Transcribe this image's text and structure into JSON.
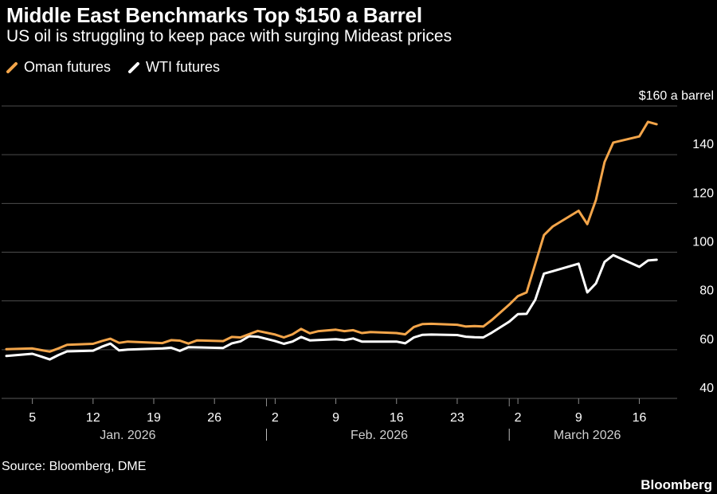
{
  "header": {
    "title": "Middle East Benchmarks Top $150 a Barrel",
    "subtitle": "US oil is struggling to keep pace with surging Mideast prices"
  },
  "footer": {
    "source": "Source: Bloomberg, DME",
    "brand": "Bloomberg"
  },
  "colors": {
    "background": "#000000",
    "oman": "#f3a54a",
    "wti": "#ffffff",
    "grid": "#4d4d4d",
    "text": "#ffffff"
  },
  "chart_data": {
    "type": "line",
    "title": "Middle East Benchmarks Top $150 a Barrel",
    "subtitle": "US oil is struggling to keep pace with surging Mideast prices",
    "xlabel": "",
    "ylabel": "",
    "unit_label": "$160 a barrel",
    "ylim": [
      40,
      160
    ],
    "yticks": [
      40,
      60,
      80,
      100,
      120,
      140,
      160
    ],
    "ytick_labels": [
      "40",
      "60",
      "80",
      "100",
      "120",
      "140",
      "$160 a barrel"
    ],
    "y_axis_side": "right",
    "grid": true,
    "legend_position": "top-left",
    "xlim": [
      "2026-01-02",
      "2026-03-20"
    ],
    "xticks": [
      {
        "date": "2026-01-05",
        "label": "5"
      },
      {
        "date": "2026-01-12",
        "label": "12"
      },
      {
        "date": "2026-01-19",
        "label": "19"
      },
      {
        "date": "2026-01-26",
        "label": "26"
      },
      {
        "date": "2026-02-02",
        "label": "2"
      },
      {
        "date": "2026-02-09",
        "label": "9"
      },
      {
        "date": "2026-02-16",
        "label": "16"
      },
      {
        "date": "2026-02-23",
        "label": "23"
      },
      {
        "date": "2026-03-02",
        "label": "2"
      },
      {
        "date": "2026-03-09",
        "label": "9"
      },
      {
        "date": "2026-03-16",
        "label": "16"
      }
    ],
    "month_labels": [
      {
        "label": "Jan. 2026",
        "center": "2026-01-16"
      },
      {
        "label": "Feb. 2026",
        "center": "2026-02-14"
      },
      {
        "label": "March 2026",
        "center": "2026-03-10"
      }
    ],
    "month_separators": [
      "2026-02-01",
      "2026-03-01"
    ],
    "series": [
      {
        "name": "Oman futures",
        "color": "#f3a54a",
        "points": [
          [
            "2026-01-02",
            60.2
          ],
          [
            "2026-01-05",
            60.5
          ],
          [
            "2026-01-06",
            59.8
          ],
          [
            "2026-01-07",
            59.2
          ],
          [
            "2026-01-08",
            60.5
          ],
          [
            "2026-01-09",
            62.0
          ],
          [
            "2026-01-12",
            62.4
          ],
          [
            "2026-01-13",
            63.5
          ],
          [
            "2026-01-14",
            64.5
          ],
          [
            "2026-01-15",
            62.8
          ],
          [
            "2026-01-16",
            63.3
          ],
          [
            "2026-01-20",
            62.7
          ],
          [
            "2026-01-21",
            63.9
          ],
          [
            "2026-01-22",
            63.7
          ],
          [
            "2026-01-23",
            62.5
          ],
          [
            "2026-01-24",
            63.8
          ],
          [
            "2026-01-27",
            63.5
          ],
          [
            "2026-01-28",
            65.2
          ],
          [
            "2026-01-29",
            65.0
          ],
          [
            "2026-01-31",
            67.7
          ],
          [
            "2026-02-02",
            66.2
          ],
          [
            "2026-02-03",
            65.0
          ],
          [
            "2026-02-04",
            66.3
          ],
          [
            "2026-02-05",
            68.5
          ],
          [
            "2026-02-06",
            66.7
          ],
          [
            "2026-02-07",
            67.6
          ],
          [
            "2026-02-09",
            68.2
          ],
          [
            "2026-02-10",
            67.6
          ],
          [
            "2026-02-11",
            68.0
          ],
          [
            "2026-02-12",
            66.8
          ],
          [
            "2026-02-13",
            67.2
          ],
          [
            "2026-02-16",
            66.8
          ],
          [
            "2026-02-17",
            66.3
          ],
          [
            "2026-02-18",
            69.3
          ],
          [
            "2026-02-19",
            70.5
          ],
          [
            "2026-02-20",
            70.6
          ],
          [
            "2026-02-23",
            70.2
          ],
          [
            "2026-02-24",
            69.5
          ],
          [
            "2026-02-25",
            69.7
          ],
          [
            "2026-02-26",
            69.5
          ],
          [
            "2026-02-27",
            72.2
          ],
          [
            "2026-03-01",
            78.5
          ],
          [
            "2026-03-02",
            82.0
          ],
          [
            "2026-03-03",
            83.5
          ],
          [
            "2026-03-05",
            107.0
          ],
          [
            "2026-03-06",
            110.5
          ],
          [
            "2026-03-09",
            117.0
          ],
          [
            "2026-03-10",
            111.5
          ],
          [
            "2026-03-11",
            121.5
          ],
          [
            "2026-03-12",
            137.0
          ],
          [
            "2026-03-13",
            145.0
          ],
          [
            "2026-03-16",
            147.5
          ],
          [
            "2026-03-17",
            153.5
          ],
          [
            "2026-03-18",
            152.5
          ]
        ]
      },
      {
        "name": "WTI futures",
        "color": "#ffffff",
        "points": [
          [
            "2026-01-02",
            57.4
          ],
          [
            "2026-01-05",
            58.3
          ],
          [
            "2026-01-06",
            57.2
          ],
          [
            "2026-01-07",
            56.0
          ],
          [
            "2026-01-08",
            57.8
          ],
          [
            "2026-01-09",
            59.3
          ],
          [
            "2026-01-12",
            59.6
          ],
          [
            "2026-01-13",
            61.2
          ],
          [
            "2026-01-14",
            62.5
          ],
          [
            "2026-01-15",
            59.7
          ],
          [
            "2026-01-16",
            60.0
          ],
          [
            "2026-01-20",
            60.5
          ],
          [
            "2026-01-21",
            60.8
          ],
          [
            "2026-01-22",
            59.5
          ],
          [
            "2026-01-23",
            61.0
          ],
          [
            "2026-01-27",
            60.7
          ],
          [
            "2026-01-28",
            62.6
          ],
          [
            "2026-01-29",
            63.4
          ],
          [
            "2026-01-30",
            65.5
          ],
          [
            "2026-01-31",
            65.3
          ],
          [
            "2026-02-02",
            63.5
          ],
          [
            "2026-02-03",
            62.4
          ],
          [
            "2026-02-04",
            63.3
          ],
          [
            "2026-02-05",
            65.2
          ],
          [
            "2026-02-06",
            63.8
          ],
          [
            "2026-02-09",
            64.3
          ],
          [
            "2026-02-10",
            63.9
          ],
          [
            "2026-02-11",
            64.6
          ],
          [
            "2026-02-12",
            63.3
          ],
          [
            "2026-02-16",
            63.3
          ],
          [
            "2026-02-17",
            62.6
          ],
          [
            "2026-02-18",
            65.0
          ],
          [
            "2026-02-19",
            66.1
          ],
          [
            "2026-02-20",
            66.2
          ],
          [
            "2026-02-23",
            66.0
          ],
          [
            "2026-02-24",
            65.3
          ],
          [
            "2026-02-25",
            65.1
          ],
          [
            "2026-02-26",
            65.0
          ],
          [
            "2026-02-27",
            67.0
          ],
          [
            "2026-03-01",
            71.5
          ],
          [
            "2026-03-02",
            74.6
          ],
          [
            "2026-03-03",
            74.7
          ],
          [
            "2026-03-04",
            80.5
          ],
          [
            "2026-03-05",
            91.2
          ],
          [
            "2026-03-06",
            92.2
          ],
          [
            "2026-03-09",
            95.3
          ],
          [
            "2026-03-10",
            83.5
          ],
          [
            "2026-03-11",
            87.2
          ],
          [
            "2026-03-12",
            96.0
          ],
          [
            "2026-03-13",
            98.8
          ],
          [
            "2026-03-16",
            94.0
          ],
          [
            "2026-03-17",
            96.6
          ],
          [
            "2026-03-18",
            96.9
          ]
        ]
      }
    ]
  }
}
